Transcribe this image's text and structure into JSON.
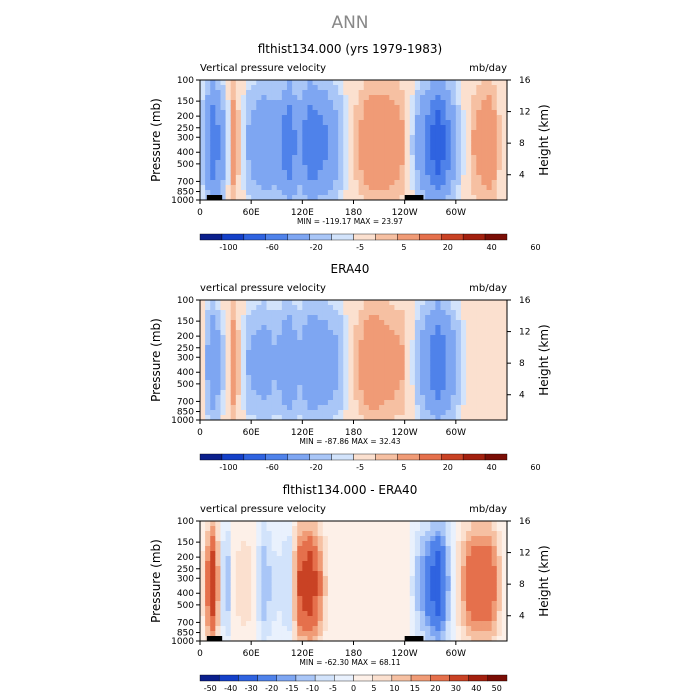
{
  "page": {
    "title": "ANN"
  },
  "palettes": {
    "full": [
      "#0a1f8c",
      "#1440c8",
      "#2f63e0",
      "#4f82ea",
      "#7ea6f2",
      "#a9c6f7",
      "#d2e3fb",
      "#fbe0cf",
      "#f6c0a2",
      "#f09b76",
      "#e5704c",
      "#c94224",
      "#a3200e",
      "#7a0d05"
    ],
    "diff": [
      "#0a1f8c",
      "#1440c8",
      "#2f63e0",
      "#4f82ea",
      "#7ea6f2",
      "#a9c6f7",
      "#d2e3fb",
      "#e9f1fd",
      "#fdf0e8",
      "#fbe0cf",
      "#f6c0a2",
      "#f09b76",
      "#e5704c",
      "#c94224",
      "#a3200e",
      "#7a0d05"
    ]
  },
  "panels": [
    {
      "title": "flthist134.000 (yrs 1979-1983)",
      "left_label": "Vertical pressure velocity",
      "right_label": "mb/day",
      "stats": "MIN = -119.17   MAX =  23.97",
      "palette": "full",
      "colorbar_labels": [
        "-100",
        "-60",
        "-20",
        "-5",
        "5",
        "20",
        "40",
        "60"
      ],
      "show_topo": true
    },
    {
      "title": "ERA40",
      "left_label": "vertical pressure velocity",
      "right_label": "mb/day",
      "stats": "MIN = -87.86   MAX =  32.43",
      "palette": "full",
      "colorbar_labels": [
        "-100",
        "-60",
        "-20",
        "-5",
        "5",
        "20",
        "40",
        "60"
      ],
      "show_topo": false
    },
    {
      "title": "flthist134.000 - ERA40",
      "left_label": "vertical pressure velocity",
      "right_label": "mb/day",
      "stats": "MIN = -62.30   MAX =  68.11",
      "palette": "diff",
      "colorbar_labels": [
        "-50",
        "-40",
        "-30",
        "-20",
        "-15",
        "-10",
        "-5",
        "0",
        "5",
        "10",
        "15",
        "20",
        "30",
        "40",
        "50"
      ],
      "show_topo": true
    }
  ],
  "chart_data": {
    "type": "heatmap",
    "x_axis": {
      "ticks": [
        "0",
        "60E",
        "120E",
        "180",
        "120W",
        "60W"
      ]
    },
    "y_axis_left": {
      "label": "Pressure (mb)",
      "ticks": [
        "100",
        "150",
        "200",
        "250",
        "300",
        "400",
        "500",
        "700",
        "850",
        "1000"
      ]
    },
    "y_axis_right": {
      "label": "Height (km)",
      "ticks": [
        "16",
        "12",
        "8",
        "4"
      ]
    },
    "field_columns": [
      {
        "lon": 0,
        "v": [
          -5,
          5,
          -2
        ]
      },
      {
        "lon": 15,
        "v": [
          -60,
          -40,
          40
        ]
      },
      {
        "lon": 30,
        "v": [
          -20,
          -5,
          -20
        ]
      },
      {
        "lon": 40,
        "v": [
          20,
          20,
          5
        ]
      },
      {
        "lon": 55,
        "v": [
          -20,
          -20,
          10
        ]
      },
      {
        "lon": 75,
        "v": [
          -40,
          -30,
          -15
        ]
      },
      {
        "lon": 90,
        "v": [
          -30,
          -20,
          -5
        ]
      },
      {
        "lon": 105,
        "v": [
          -60,
          -40,
          -10
        ]
      },
      {
        "lon": 115,
        "v": [
          -30,
          -20,
          30
        ]
      },
      {
        "lon": 130,
        "v": [
          -60,
          -40,
          40
        ]
      },
      {
        "lon": 150,
        "v": [
          -40,
          -30,
          5
        ]
      },
      {
        "lon": 165,
        "v": [
          -20,
          -20,
          5
        ]
      },
      {
        "lon": 180,
        "v": [
          5,
          5,
          5
        ]
      },
      {
        "lon": 200,
        "v": [
          20,
          20,
          5
        ]
      },
      {
        "lon": 220,
        "v": [
          20,
          15,
          5
        ]
      },
      {
        "lon": 240,
        "v": [
          10,
          10,
          5
        ]
      },
      {
        "lon": 280,
        "v": [
          -80,
          -60,
          -40
        ]
      },
      {
        "lon": 300,
        "v": [
          -20,
          -20,
          5
        ]
      },
      {
        "lon": 320,
        "v": [
          10,
          5,
          30
        ]
      },
      {
        "lon": 340,
        "v": [
          20,
          5,
          30
        ]
      }
    ]
  }
}
